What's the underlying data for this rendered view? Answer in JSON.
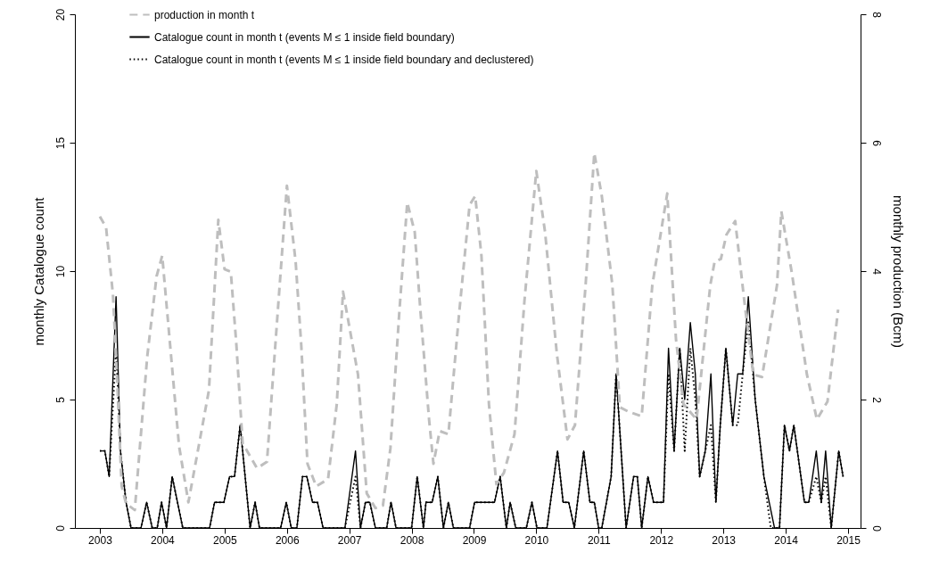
{
  "chart_data": {
    "type": "line",
    "xlabel": null,
    "ylabel": "monthly Catalogue count",
    "y2label": "monthly production (Bcm)",
    "xlim": [
      2002.6,
      2015.2
    ],
    "xticks": [
      2003,
      2004,
      2005,
      2006,
      2007,
      2008,
      2009,
      2010,
      2011,
      2012,
      2013,
      2014,
      2015
    ],
    "ylim": [
      0,
      20
    ],
    "yticks": [
      0,
      5,
      10,
      15,
      20
    ],
    "y2lim": [
      0,
      8
    ],
    "y2ticks": [
      0,
      2,
      4,
      6,
      8
    ],
    "grid": false,
    "legend": "top left",
    "marker": "none",
    "series": [
      {
        "name": "production in month t",
        "color": "#bebebe",
        "line_style": "dashed",
        "axis": "y2",
        "x": [
          2003.0,
          2003.1,
          2003.21,
          2003.28,
          2003.35,
          2003.42,
          2003.56,
          2003.76,
          2003.91,
          2004.0,
          2004.27,
          2004.42,
          2004.56,
          2004.75,
          2004.9,
          2005.0,
          2005.1,
          2005.19,
          2005.29,
          2005.52,
          2005.68,
          2005.78,
          2006.0,
          2006.14,
          2006.23,
          2006.33,
          2006.47,
          2006.66,
          2006.8,
          2006.9,
          2007.14,
          2007.28,
          2007.42,
          2007.54,
          2007.66,
          2007.8,
          2007.93,
          2008.05,
          2008.14,
          2008.28,
          2008.35,
          2008.45,
          2008.59,
          2008.76,
          2008.93,
          2009.02,
          2009.12,
          2009.24,
          2009.36,
          2009.48,
          2009.65,
          2009.81,
          2010.0,
          2010.14,
          2010.33,
          2010.5,
          2010.62,
          2010.79,
          2010.93,
          2011.05,
          2011.22,
          2011.34,
          2011.48,
          2011.69,
          2011.86,
          2012.1,
          2012.24,
          2012.36,
          2012.57,
          2012.79,
          2012.86,
          2012.96,
          2013.05,
          2013.19,
          2013.34,
          2013.48,
          2013.62,
          2013.86,
          2013.93,
          2014.1,
          2014.34,
          2014.5,
          2014.67,
          2014.84
        ],
        "values": [
          4.85,
          4.68,
          3.64,
          2.25,
          0.65,
          0.38,
          0.28,
          2.67,
          3.92,
          4.24,
          1.28,
          0.4,
          1.14,
          2.15,
          4.8,
          4.03,
          3.99,
          2.85,
          1.32,
          0.93,
          1.03,
          2.39,
          5.33,
          4.15,
          2.85,
          1.0,
          0.65,
          0.76,
          1.93,
          3.68,
          2.39,
          0.54,
          0.31,
          0.35,
          1.24,
          3.32,
          5.07,
          4.61,
          3.4,
          1.69,
          1.0,
          1.51,
          1.46,
          3.32,
          5.03,
          5.17,
          4.24,
          1.93,
          0.68,
          0.86,
          1.46,
          3.54,
          5.56,
          4.61,
          2.71,
          1.38,
          1.6,
          3.78,
          5.84,
          5.17,
          3.78,
          1.88,
          1.81,
          1.74,
          3.78,
          5.21,
          2.94,
          1.93,
          1.69,
          3.78,
          4.15,
          4.19,
          4.57,
          4.78,
          3.5,
          2.39,
          2.35,
          3.78,
          4.93,
          3.96,
          2.39,
          1.69,
          1.97,
          3.4
        ]
      },
      {
        "name": "Catalogue count in month t (events M ≤ 1 inside field boundary)",
        "color": "#000000",
        "line_style": "solid",
        "x": [
          2003.0,
          2003.08,
          2003.15,
          2003.26,
          2003.33,
          2003.42,
          2003.5,
          2003.66,
          2003.75,
          2003.84,
          2003.92,
          2003.99,
          2004.07,
          2004.16,
          2004.33,
          2004.76,
          2004.84,
          2004.99,
          2005.08,
          2005.16,
          2005.25,
          2005.41,
          2005.49,
          2005.56,
          2005.9,
          2005.99,
          2006.07,
          2006.16,
          2006.25,
          2006.32,
          2006.41,
          2006.49,
          2006.58,
          2006.93,
          2007.1,
          2007.18,
          2007.26,
          2007.33,
          2007.42,
          2007.6,
          2007.67,
          2007.75,
          2008.0,
          2008.09,
          2008.19,
          2008.23,
          2008.33,
          2008.42,
          2008.51,
          2008.59,
          2008.67,
          2008.93,
          2009.01,
          2009.33,
          2009.42,
          2009.52,
          2009.58,
          2009.67,
          2009.84,
          2009.93,
          2010.01,
          2010.17,
          2010.34,
          2010.43,
          2010.52,
          2010.61,
          2010.76,
          2010.86,
          2010.93,
          2011.0,
          2011.05,
          2011.2,
          2011.28,
          2011.44,
          2011.56,
          2011.62,
          2011.69,
          2011.79,
          2011.88,
          2012.04,
          2012.12,
          2012.21,
          2012.3,
          2012.38,
          2012.47,
          2012.55,
          2012.62,
          2012.71,
          2012.8,
          2012.88,
          2012.95,
          2013.04,
          2013.15,
          2013.23,
          2013.31,
          2013.4,
          2013.51,
          2013.65,
          2013.82,
          2013.9,
          2013.98,
          2014.06,
          2014.13,
          2014.3,
          2014.37,
          2014.49,
          2014.57,
          2014.64,
          2014.73,
          2014.85,
          2014.92
        ],
        "values": [
          3,
          3,
          2,
          9,
          3,
          1,
          0,
          0,
          1,
          0,
          0,
          1,
          0,
          2,
          0,
          0,
          1,
          1,
          2,
          2,
          4,
          0,
          1,
          0,
          0,
          1,
          0,
          0,
          2,
          2,
          1,
          1,
          0,
          0,
          3,
          0,
          1,
          1,
          0,
          0,
          1,
          0,
          0,
          2,
          0,
          1,
          1,
          2,
          0,
          1,
          0,
          0,
          1,
          1,
          2,
          0,
          1,
          0,
          0,
          1,
          0,
          0,
          3,
          1,
          1,
          0,
          3,
          1,
          1,
          0,
          0,
          2,
          6,
          0,
          2,
          2,
          0,
          2,
          1,
          1,
          7,
          3,
          7,
          5,
          8,
          6,
          2,
          3,
          6,
          1,
          4,
          7,
          4,
          6,
          6,
          9,
          5,
          2,
          0,
          0,
          4,
          3,
          4,
          1,
          1,
          3,
          1,
          3,
          0,
          3,
          2
        ]
      },
      {
        "name": "Catalogue count in month t (events M ≤ 1 inside field boundary and declustered)",
        "color": "#000000",
        "line_style": "dotted",
        "x": [
          2003.0,
          2003.08,
          2003.15,
          2003.26,
          2003.33,
          2003.42,
          2003.5,
          2003.66,
          2003.75,
          2003.84,
          2003.92,
          2003.99,
          2004.07,
          2004.16,
          2004.33,
          2004.76,
          2004.84,
          2004.99,
          2005.08,
          2005.16,
          2005.25,
          2005.41,
          2005.49,
          2005.56,
          2005.9,
          2005.99,
          2006.07,
          2006.16,
          2006.25,
          2006.32,
          2006.41,
          2006.49,
          2006.58,
          2006.93,
          2007.1,
          2007.18,
          2007.26,
          2007.33,
          2007.42,
          2007.6,
          2007.67,
          2007.75,
          2008.0,
          2008.09,
          2008.19,
          2008.23,
          2008.33,
          2008.42,
          2008.51,
          2008.59,
          2008.67,
          2008.93,
          2009.01,
          2009.33,
          2009.42,
          2009.52,
          2009.58,
          2009.67,
          2009.84,
          2009.93,
          2010.01,
          2010.17,
          2010.34,
          2010.43,
          2010.52,
          2010.61,
          2010.76,
          2010.86,
          2010.93,
          2011.0,
          2011.05,
          2011.2,
          2011.28,
          2011.44,
          2011.56,
          2011.62,
          2011.69,
          2011.79,
          2011.88,
          2012.04,
          2012.12,
          2012.21,
          2012.3,
          2012.38,
          2012.47,
          2012.55,
          2012.62,
          2012.71,
          2012.8,
          2012.88,
          2012.95,
          2013.04,
          2013.15,
          2013.23,
          2013.31,
          2013.4,
          2013.51,
          2013.65,
          2013.76,
          2013.9,
          2013.98,
          2014.06,
          2014.13,
          2014.3,
          2014.37,
          2014.49,
          2014.57,
          2014.64,
          2014.73,
          2014.85,
          2014.92
        ],
        "values": [
          3,
          3,
          2,
          7,
          3,
          1,
          0,
          0,
          1,
          0,
          0,
          1,
          0,
          2,
          0,
          0,
          1,
          1,
          2,
          2,
          4,
          0,
          1,
          0,
          0,
          1,
          0,
          0,
          2,
          2,
          1,
          1,
          0,
          0,
          2,
          0,
          1,
          1,
          0,
          0,
          1,
          0,
          0,
          2,
          0,
          1,
          1,
          2,
          0,
          1,
          0,
          0,
          1,
          1,
          2,
          0,
          1,
          0,
          0,
          1,
          0,
          0,
          3,
          1,
          1,
          0,
          3,
          1,
          1,
          0,
          0,
          2,
          6,
          0,
          2,
          2,
          0,
          2,
          1,
          1,
          6,
          3,
          7,
          3,
          7,
          5,
          2,
          3,
          4,
          1,
          4,
          7,
          4,
          4,
          6,
          8,
          5,
          2,
          0,
          0,
          4,
          3,
          4,
          1,
          1,
          2,
          1,
          2,
          0,
          3,
          2
        ]
      }
    ]
  }
}
